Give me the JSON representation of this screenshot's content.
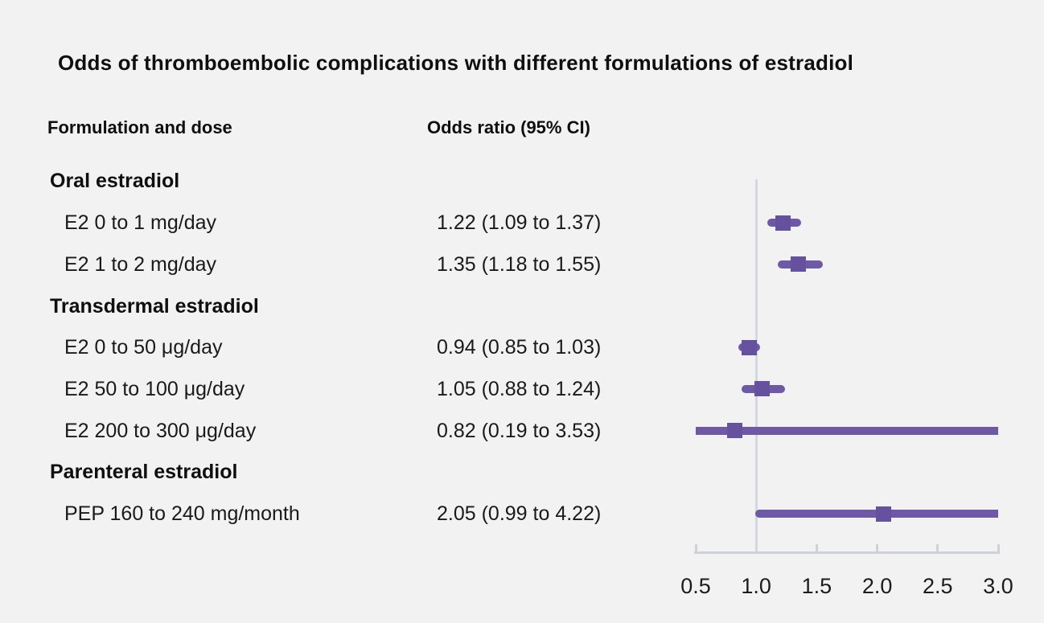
{
  "title": "Odds of thromboembolic complications with different formulations of estradiol",
  "columns": {
    "formulation": "Formulation and dose",
    "odds_ratio": "Odds ratio (95% CI)"
  },
  "colors": {
    "background": "#f2f2f2",
    "text": "#1a1a1a",
    "axis": "#cdd1da",
    "reference_line": "#d3d7df",
    "ci_line": "#6d59a5",
    "marker": "#66519f"
  },
  "chart_data": {
    "type": "forest",
    "title": "Odds of thromboembolic complications with different formulations of estradiol",
    "xlabel": "",
    "ylabel": "",
    "xlim": [
      0.5,
      3.0
    ],
    "reference_value": 1.0,
    "ticks": [
      0.5,
      1.0,
      1.5,
      2.0,
      2.5,
      3.0
    ],
    "tick_labels": [
      "0.5",
      "1.0",
      "1.5",
      "2.0",
      "2.5",
      "3.0"
    ],
    "grid": false,
    "legend": "none",
    "rows": [
      {
        "kind": "group",
        "label": "Oral estradiol"
      },
      {
        "kind": "item",
        "label": "E2 0 to 1 mg/day",
        "value_text": "1.22 (1.09 to 1.37)",
        "or": 1.22,
        "ci_low": 1.09,
        "ci_high": 1.37
      },
      {
        "kind": "item",
        "label": "E2 1 to 2 mg/day",
        "value_text": "1.35 (1.18 to 1.55)",
        "or": 1.35,
        "ci_low": 1.18,
        "ci_high": 1.55
      },
      {
        "kind": "group",
        "label": "Transdermal estradiol"
      },
      {
        "kind": "item",
        "label": "E2 0 to 50 μg/day",
        "value_text": "0.94 (0.85 to 1.03)",
        "or": 0.94,
        "ci_low": 0.85,
        "ci_high": 1.03
      },
      {
        "kind": "item",
        "label": "E2 50 to 100 μg/day",
        "value_text": "1.05 (0.88 to 1.24)",
        "or": 1.05,
        "ci_low": 0.88,
        "ci_high": 1.24
      },
      {
        "kind": "item",
        "label": "E2 200 to 300 μg/day",
        "value_text": "0.82 (0.19 to 3.53)",
        "or": 0.82,
        "ci_low": 0.19,
        "ci_high": 3.53
      },
      {
        "kind": "group",
        "label": "Parenteral estradiol"
      },
      {
        "kind": "item",
        "label": "PEP 160 to 240 mg/month",
        "value_text": "2.05 (0.99 to 4.22)",
        "or": 2.05,
        "ci_low": 0.99,
        "ci_high": 4.22
      }
    ]
  }
}
